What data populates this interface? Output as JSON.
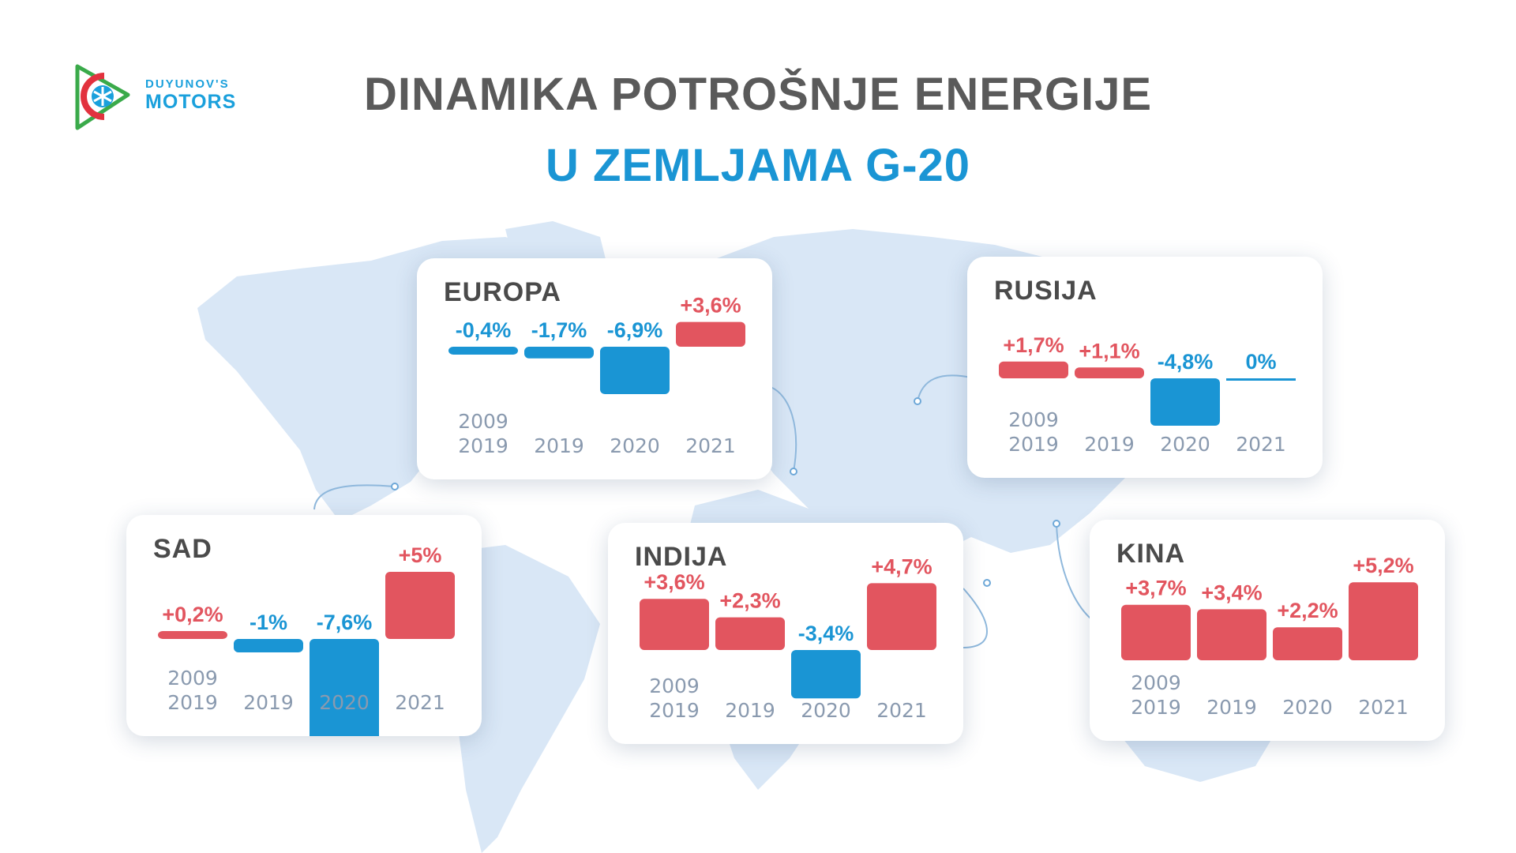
{
  "header": {
    "title": "DINAMIKA POTROŠNJE ENERGIJE",
    "subtitle": "U ZEMLJAMA G-20"
  },
  "logo": {
    "line1": "DUYUNOV'S",
    "line2": "MOTORS"
  },
  "colors": {
    "positive": "#e2555f",
    "negative": "#1a95d4",
    "title": "#5a5a5a",
    "subtitle": "#1a95d4",
    "map": "#d6e6f6",
    "year_labels": "#8a9aaf"
  },
  "chart_data": [
    {
      "type": "bar",
      "title": "EUROPA",
      "categories": [
        "2009 2019",
        "2019",
        "2020",
        "2021"
      ],
      "values": [
        -0.4,
        -1.7,
        -6.9,
        3.6
      ],
      "labels": [
        "-0,4%",
        "-1,7%",
        "-6,9%",
        "+3,6%"
      ]
    },
    {
      "type": "bar",
      "title": "RUSIJA",
      "categories": [
        "2009 2019",
        "2019",
        "2020",
        "2021"
      ],
      "values": [
        1.7,
        1.1,
        -4.8,
        0
      ],
      "labels": [
        "+1,7%",
        "+1,1%",
        "-4,8%",
        "0%"
      ]
    },
    {
      "type": "bar",
      "title": "SAD",
      "categories": [
        "2009 2019",
        "2019",
        "2020",
        "2021"
      ],
      "values": [
        0.2,
        -1,
        -7.6,
        5
      ],
      "labels": [
        "+0,2%",
        "-1%",
        "-7,6%",
        "+5%"
      ]
    },
    {
      "type": "bar",
      "title": "INDIJA",
      "categories": [
        "2009 2019",
        "2019",
        "2020",
        "2021"
      ],
      "values": [
        3.6,
        2.3,
        -3.4,
        4.7
      ],
      "labels": [
        "+3,6%",
        "+2,3%",
        "-3,4%",
        "+4,7%"
      ]
    },
    {
      "type": "bar",
      "title": "KINA",
      "categories": [
        "2009 2019",
        "2019",
        "2020",
        "2021"
      ],
      "values": [
        3.7,
        3.4,
        2.2,
        5.2
      ],
      "labels": [
        "+3,7%",
        "+3,4%",
        "+2,2%",
        "+5,2%"
      ]
    }
  ]
}
